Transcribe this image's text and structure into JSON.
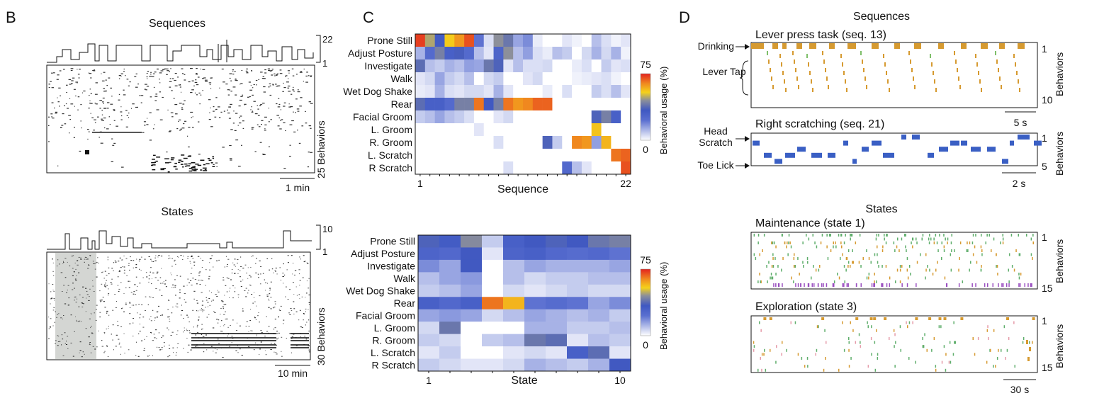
{
  "panel_letters": {
    "b": "B",
    "c": "C",
    "d": "D"
  },
  "panel_b": {
    "sequences_title": "Sequences",
    "seq_range": {
      "top": "22",
      "bottom": "1"
    },
    "seq_behaviors_label": "25 Behaviors",
    "seq_scalebar": "1 min",
    "states_title": "States",
    "state_range": {
      "top": "10",
      "bottom": "1"
    },
    "state_behaviors_label": "30 Behaviors",
    "state_scalebar": "10 min"
  },
  "panel_d": {
    "sequences_title": "Sequences",
    "lever_title": "Lever press task (seq. 13)",
    "drinking_label": "Drinking",
    "lever_tap_label": "Lever Tap",
    "lever_range": {
      "top": "1",
      "bottom": "10"
    },
    "lever_scalebar": "5 s",
    "scratch_title": "Right scratching  (seq. 21)",
    "head_label": "Head",
    "scratch_label": "Scratch",
    "toe_lick_label": "Toe Lick",
    "scratch_range": {
      "top": "1",
      "bottom": "5"
    },
    "scratch_scalebar": "2 s",
    "states_title": "States",
    "maint_title": "Maintenance  (state 1)",
    "maint_range": {
      "top": "1",
      "bottom": "15"
    },
    "explore_title": "Exploration (state 3)",
    "explore_range": {
      "top": "1",
      "bottom": "15"
    },
    "explore_scalebar": "30 s",
    "behaviors_label": "Behaviors"
  },
  "chart_data": [
    {
      "type": "heatmap",
      "title": "",
      "xlabel": "Sequence",
      "x_tick_labels": [
        "1",
        "22"
      ],
      "ylabel": "",
      "categories_y": [
        "Prone Still",
        "Adjust Posture",
        "Investigate",
        "Walk",
        "Wet Dog Shake",
        "Rear",
        "Facial Groom",
        "L. Groom",
        "R. Groom",
        "L. Scratch",
        "R Scratch"
      ],
      "colorbar": {
        "label": "Behavioral usage (%)",
        "min": 0,
        "max": 75
      },
      "values": [
        [
          72,
          48,
          32,
          55,
          62,
          70,
          22,
          5,
          45,
          40,
          14,
          18,
          3,
          0,
          0,
          4,
          2,
          0,
          10,
          5,
          2,
          4
        ],
        [
          12,
          25,
          42,
          30,
          35,
          25,
          10,
          4,
          28,
          45,
          10,
          15,
          5,
          3,
          10,
          8,
          0,
          6,
          12,
          6,
          12,
          2
        ],
        [
          38,
          10,
          8,
          12,
          10,
          15,
          14,
          40,
          36,
          4,
          10,
          5,
          5,
          6,
          0,
          0,
          3,
          5,
          0,
          8,
          4,
          5
        ],
        [
          4,
          6,
          14,
          8,
          6,
          10,
          0,
          6,
          8,
          0,
          0,
          4,
          6,
          0,
          0,
          0,
          2,
          3,
          4,
          5,
          2,
          0
        ],
        [
          3,
          4,
          12,
          5,
          4,
          6,
          6,
          4,
          12,
          4,
          0,
          0,
          0,
          3,
          0,
          5,
          0,
          0,
          8,
          5,
          10,
          4
        ],
        [
          38,
          30,
          30,
          25,
          42,
          42,
          66,
          34,
          42,
          66,
          62,
          64,
          68,
          68,
          0,
          0,
          0,
          0,
          0,
          0,
          0,
          0
        ],
        [
          8,
          10,
          14,
          10,
          8,
          5,
          0,
          0,
          4,
          6,
          0,
          0,
          0,
          0,
          0,
          0,
          0,
          0,
          36,
          42,
          30,
          0
        ],
        [
          0,
          0,
          0,
          0,
          0,
          0,
          4,
          0,
          0,
          0,
          0,
          0,
          0,
          0,
          0,
          0,
          0,
          0,
          56,
          0,
          0,
          0
        ],
        [
          0,
          0,
          0,
          0,
          0,
          0,
          0,
          0,
          5,
          0,
          0,
          0,
          0,
          36,
          8,
          0,
          64,
          62,
          15,
          58,
          0,
          0
        ],
        [
          0,
          0,
          0,
          0,
          0,
          0,
          0,
          0,
          0,
          0,
          0,
          0,
          0,
          0,
          0,
          0,
          0,
          0,
          0,
          0,
          66,
          68
        ],
        [
          0,
          0,
          0,
          0,
          0,
          0,
          0,
          0,
          0,
          5,
          0,
          0,
          0,
          0,
          0,
          26,
          10,
          4,
          0,
          0,
          0,
          70
        ]
      ]
    },
    {
      "type": "heatmap",
      "title": "",
      "xlabel": "State",
      "x_tick_labels": [
        "1",
        "10"
      ],
      "ylabel": "",
      "categories_y": [
        "Prone Still",
        "Adjust Posture",
        "Investigate",
        "Walk",
        "Wet Dog Shake",
        "Rear",
        "Facial Groom",
        "L. Groom",
        "R. Groom",
        "L. Scratch",
        "R Scratch"
      ],
      "colorbar": {
        "label": "Behavioral usage (%)",
        "min": 0,
        "max": 75
      },
      "values": [
        [
          36,
          32,
          44,
          8,
          30,
          34,
          36,
          34,
          40,
          42
        ],
        [
          28,
          26,
          34,
          4,
          28,
          30,
          26,
          24,
          26,
          22
        ],
        [
          18,
          14,
          34,
          0,
          10,
          14,
          12,
          12,
          12,
          14
        ],
        [
          10,
          14,
          16,
          0,
          10,
          6,
          8,
          8,
          10,
          10
        ],
        [
          8,
          10,
          14,
          0,
          6,
          4,
          6,
          8,
          6,
          6
        ],
        [
          30,
          26,
          30,
          66,
          58,
          22,
          24,
          22,
          14,
          18
        ],
        [
          14,
          16,
          14,
          6,
          10,
          14,
          12,
          10,
          12,
          8
        ],
        [
          6,
          40,
          0,
          0,
          0,
          12,
          12,
          8,
          8,
          10
        ],
        [
          8,
          6,
          0,
          8,
          10,
          40,
          38,
          4,
          10,
          8
        ],
        [
          4,
          8,
          0,
          0,
          4,
          6,
          4,
          30,
          38,
          4
        ],
        [
          8,
          6,
          4,
          4,
          6,
          12,
          10,
          8,
          12,
          34
        ]
      ]
    }
  ]
}
